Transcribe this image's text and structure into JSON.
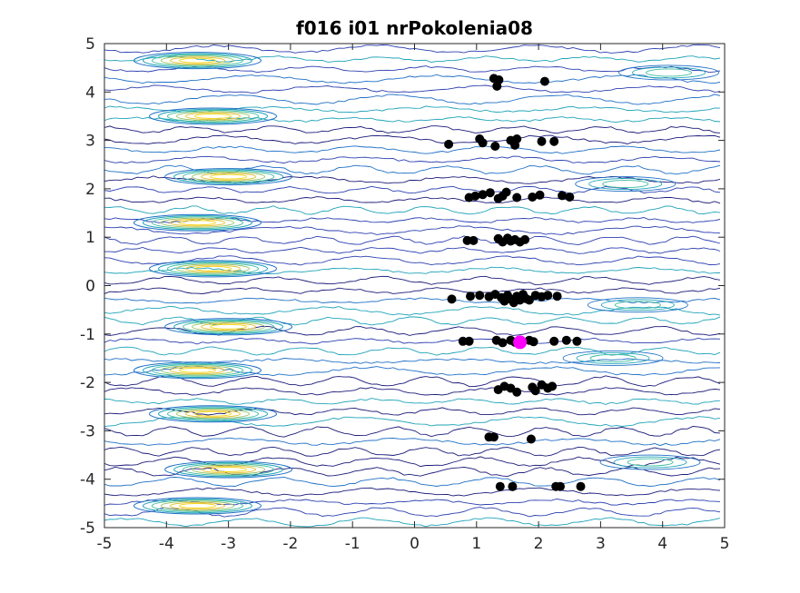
{
  "chart_data": {
    "type": "scatter",
    "title": "f016 i01 nrPokolenia08",
    "xlabel": "",
    "ylabel": "",
    "xlim": [
      -5,
      5
    ],
    "ylim": [
      -5,
      5
    ],
    "xticks": [
      -5,
      -4,
      -3,
      -2,
      -1,
      0,
      1,
      2,
      3,
      4,
      5
    ],
    "yticks": [
      -5,
      -4,
      -3,
      -2,
      -1,
      0,
      1,
      2,
      3,
      4,
      5
    ],
    "x_tick_labels": [
      "-5",
      "-4",
      "-3",
      "-2",
      "-1",
      "0",
      "1",
      "2",
      "3",
      "4",
      "5"
    ],
    "y_tick_labels": [
      "-5",
      "-4",
      "-3",
      "-2",
      "-1",
      "0",
      "1",
      "2",
      "3",
      "4",
      "5"
    ],
    "grid": false,
    "background": "contour",
    "contour_colors": [
      "#1a1a7a",
      "#2c3fb0",
      "#1f6fc6",
      "#1fa3b8",
      "#3cbca0",
      "#9ac46a",
      "#e3c23a",
      "#f4d61e"
    ],
    "series": [
      {
        "marker_color": "#000000",
        "points": [
          [
            1.28,
            4.28
          ],
          [
            1.33,
            4.12
          ],
          [
            1.36,
            4.25
          ],
          [
            2.1,
            4.22
          ],
          [
            0.55,
            2.92
          ],
          [
            1.05,
            3.03
          ],
          [
            1.1,
            2.95
          ],
          [
            1.3,
            2.88
          ],
          [
            1.55,
            3.0
          ],
          [
            1.62,
            2.9
          ],
          [
            1.65,
            3.03
          ],
          [
            2.05,
            2.98
          ],
          [
            2.25,
            2.98
          ],
          [
            0.88,
            1.82
          ],
          [
            0.98,
            1.85
          ],
          [
            1.1,
            1.88
          ],
          [
            1.22,
            1.92
          ],
          [
            1.35,
            1.8
          ],
          [
            1.42,
            1.85
          ],
          [
            1.48,
            1.93
          ],
          [
            1.65,
            1.82
          ],
          [
            1.9,
            1.83
          ],
          [
            2.02,
            1.87
          ],
          [
            2.38,
            1.86
          ],
          [
            2.5,
            1.83
          ],
          [
            0.85,
            0.93
          ],
          [
            0.95,
            0.93
          ],
          [
            1.35,
            0.97
          ],
          [
            1.42,
            0.9
          ],
          [
            1.5,
            0.98
          ],
          [
            1.55,
            0.92
          ],
          [
            1.62,
            0.95
          ],
          [
            1.7,
            0.9
          ],
          [
            1.78,
            0.95
          ],
          [
            0.6,
            -0.28
          ],
          [
            0.9,
            -0.22
          ],
          [
            1.05,
            -0.2
          ],
          [
            1.2,
            -0.23
          ],
          [
            1.3,
            -0.18
          ],
          [
            1.4,
            -0.25
          ],
          [
            1.45,
            -0.32
          ],
          [
            1.5,
            -0.2
          ],
          [
            1.55,
            -0.28
          ],
          [
            1.6,
            -0.35
          ],
          [
            1.65,
            -0.22
          ],
          [
            1.7,
            -0.3
          ],
          [
            1.75,
            -0.18
          ],
          [
            1.8,
            -0.27
          ],
          [
            1.85,
            -0.3
          ],
          [
            1.95,
            -0.2
          ],
          [
            2.05,
            -0.23
          ],
          [
            2.15,
            -0.2
          ],
          [
            2.3,
            -0.22
          ],
          [
            0.78,
            -1.15
          ],
          [
            0.88,
            -1.15
          ],
          [
            1.32,
            -1.13
          ],
          [
            1.42,
            -1.18
          ],
          [
            1.55,
            -1.13
          ],
          [
            1.62,
            -1.17
          ],
          [
            1.85,
            -1.13
          ],
          [
            1.92,
            -1.16
          ],
          [
            2.25,
            -1.15
          ],
          [
            2.45,
            -1.13
          ],
          [
            2.62,
            -1.15
          ],
          [
            1.35,
            -2.15
          ],
          [
            1.45,
            -2.08
          ],
          [
            1.55,
            -2.12
          ],
          [
            1.65,
            -2.2
          ],
          [
            1.9,
            -2.1
          ],
          [
            1.95,
            -2.17
          ],
          [
            2.05,
            -2.05
          ],
          [
            2.15,
            -2.12
          ],
          [
            2.22,
            -2.08
          ],
          [
            1.2,
            -3.13
          ],
          [
            1.28,
            -3.13
          ],
          [
            1.88,
            -3.17
          ],
          [
            1.38,
            -4.15
          ],
          [
            1.58,
            -4.15
          ],
          [
            2.28,
            -4.15
          ],
          [
            2.35,
            -4.15
          ],
          [
            2.68,
            -4.15
          ]
        ]
      },
      {
        "marker_color": "#ff00ff",
        "points": [
          [
            1.7,
            -1.17
          ]
        ]
      }
    ]
  }
}
